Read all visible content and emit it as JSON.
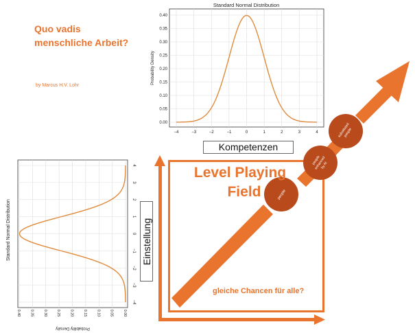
{
  "title_lines": [
    "Quo vadis",
    "menschliche Arbeit?"
  ],
  "author": "by Marcus H.V. Lohr",
  "axis_labels": {
    "competence": "Kompetenzen",
    "attitude": "Einstellung"
  },
  "field": {
    "title_line1": "Level Playing",
    "title_line2": "Field",
    "question": "gleiche Chancen für alle?"
  },
  "circles": [
    {
      "lines": [
        "people"
      ]
    },
    {
      "lines": [
        "people",
        "enhanced",
        "by AI"
      ]
    },
    {
      "lines": [
        "substituted",
        "people"
      ]
    }
  ],
  "colors": {
    "accent": "#e8742e",
    "circle_fill": "#b84a1c",
    "curve": "#e08a3b"
  },
  "chart_data": [
    {
      "type": "line",
      "title": "Standard Normal Distribution",
      "xlabel": "",
      "ylabel": "Probability Density",
      "xlim": [
        -4,
        4
      ],
      "ylim": [
        0,
        0.4
      ],
      "xticks": [
        "−4",
        "−3",
        "−2",
        "−1",
        "0",
        "1",
        "2",
        "3",
        "4"
      ],
      "yticks": [
        "0.00",
        "0.05",
        "0.10",
        "0.15",
        "0.20",
        "0.25",
        "0.30",
        "0.35",
        "0.40"
      ],
      "grid": true,
      "function": "standard normal pdf"
    },
    {
      "type": "line",
      "orientation": "rotated",
      "title": "Standard Normal Distribution",
      "xlabel": "Probability Density",
      "xlim": [
        0.4,
        0
      ],
      "ylim": [
        -4,
        4
      ],
      "xticks": [
        "0.40",
        "0.35",
        "0.30",
        "0.25",
        "0.20",
        "0.15",
        "0.10",
        "0.05",
        "0.00"
      ],
      "yticks": [
        "4",
        "3",
        "2",
        "1",
        "0",
        "−1",
        "−2",
        "−3",
        "−4"
      ],
      "grid": true,
      "function": "standard normal pdf"
    }
  ]
}
